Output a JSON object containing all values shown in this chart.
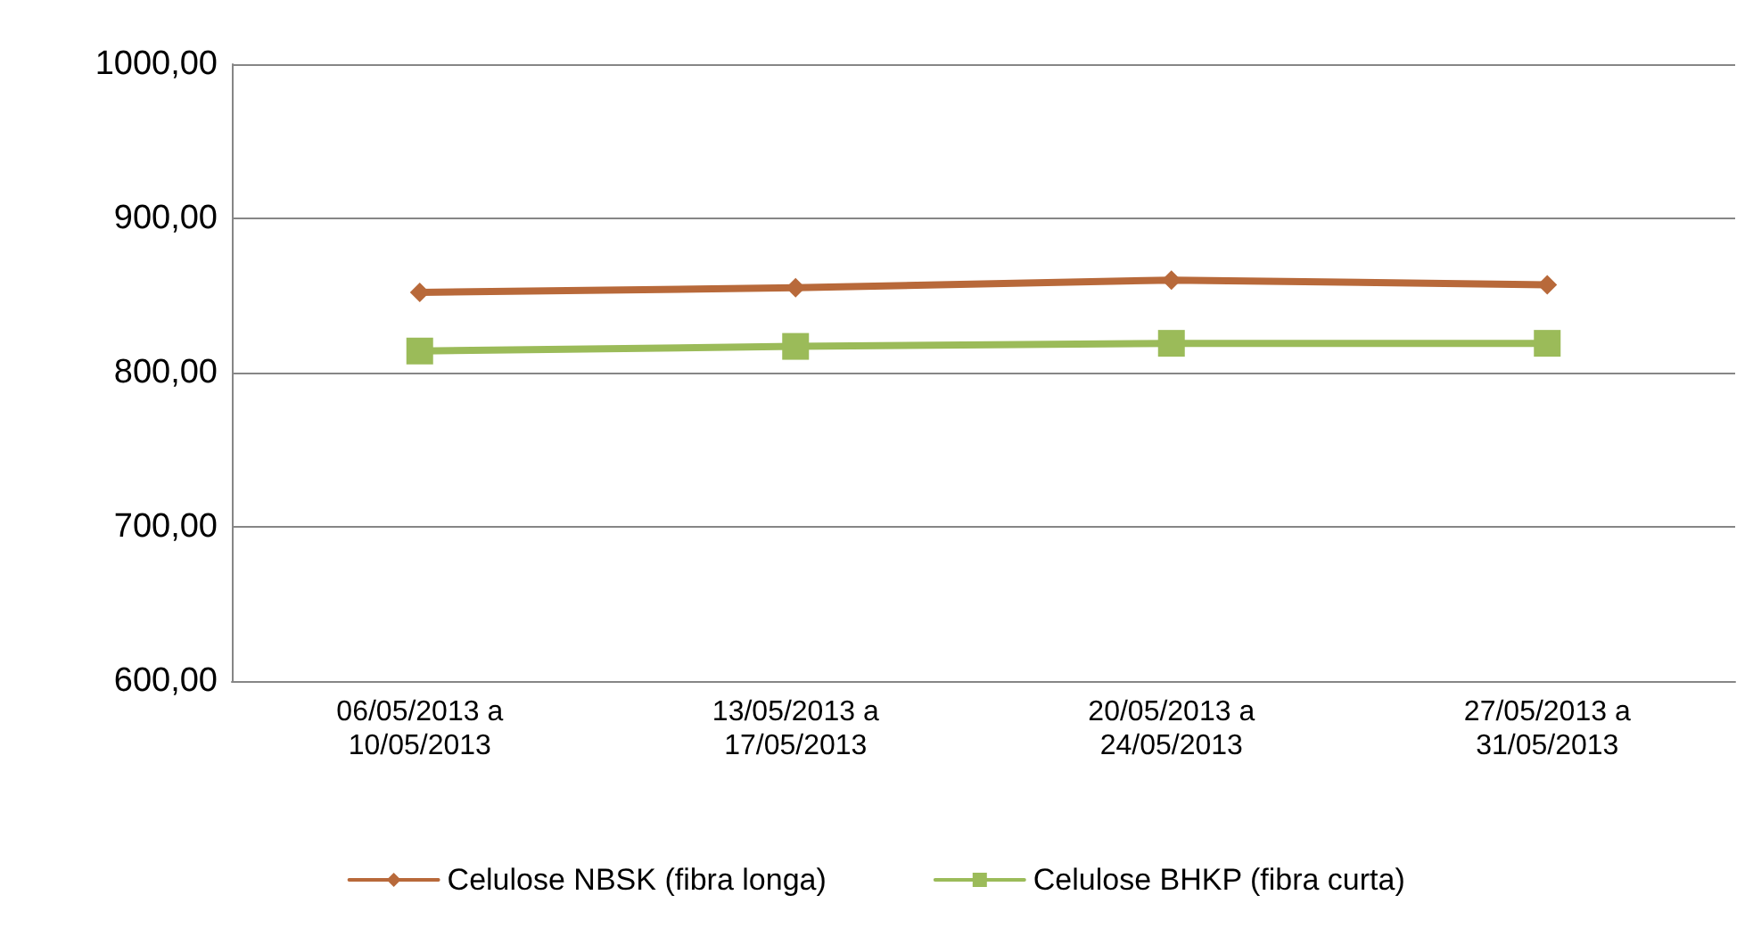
{
  "chart_data": {
    "type": "line",
    "categories": [
      "06/05/2013 a\n10/05/2013",
      "13/05/2013 a\n17/05/2013",
      "20/05/2013 a\n24/05/2013",
      "27/05/2013 a\n31/05/2013"
    ],
    "series": [
      {
        "name": "Celulose NBSK (fibra longa)",
        "color": "#b8693a",
        "marker": "diamond",
        "values": [
          852,
          855,
          860,
          857
        ]
      },
      {
        "name": "Celulose BHKP (fibra curta)",
        "color": "#9bbb59",
        "marker": "square",
        "values": [
          814,
          817,
          819,
          819
        ]
      }
    ],
    "ylim": [
      600,
      1000
    ],
    "yticks": [
      {
        "value": 600,
        "label": "600,00"
      },
      {
        "value": 700,
        "label": "700,00"
      },
      {
        "value": 800,
        "label": "800,00"
      },
      {
        "value": 900,
        "label": "900,00"
      },
      {
        "value": 1000,
        "label": "1000,00"
      }
    ],
    "grid": "y",
    "legend": "bottom",
    "line_style": "solid"
  }
}
